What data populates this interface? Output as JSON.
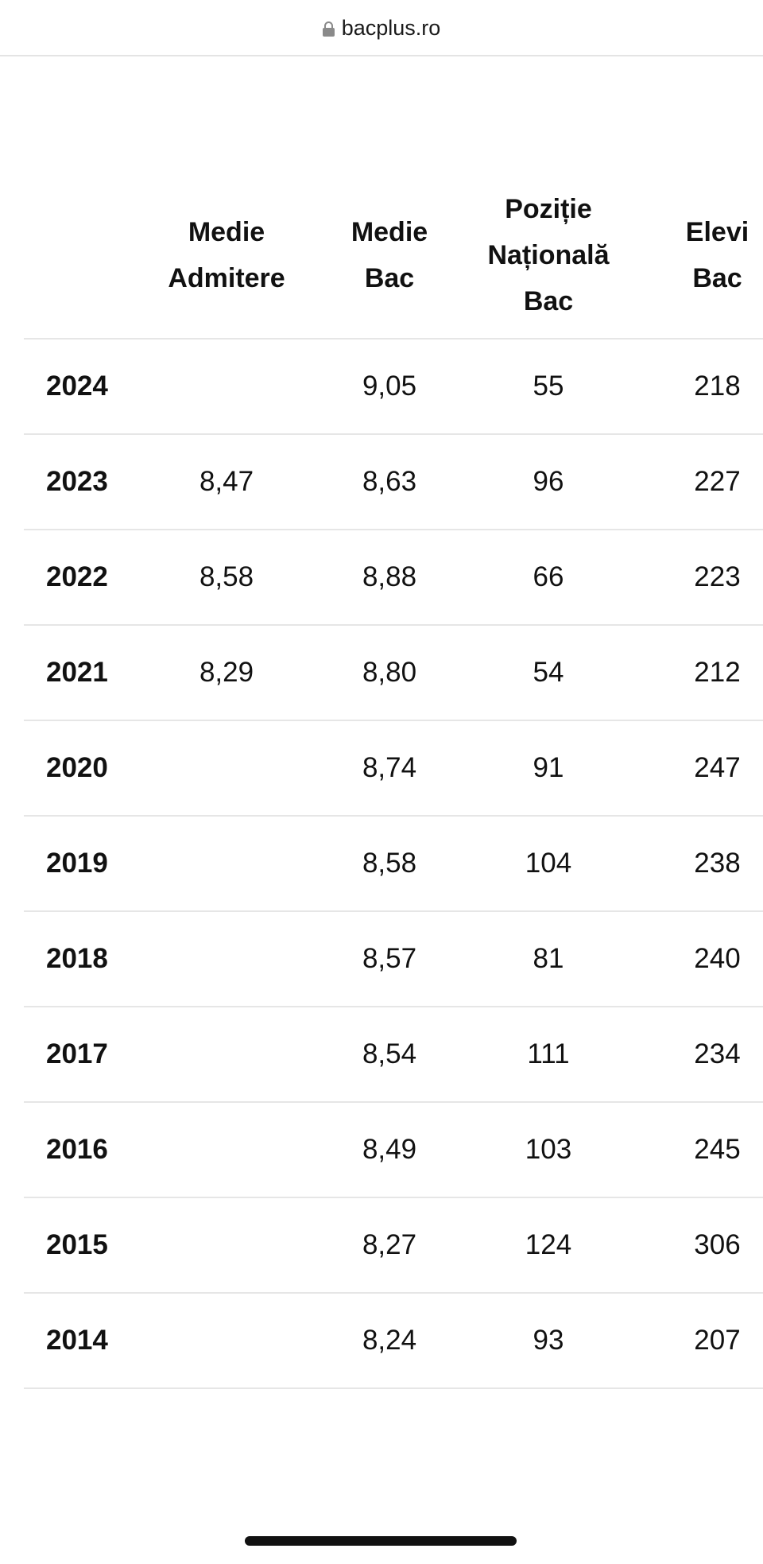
{
  "browser": {
    "url": "bacplus.ro",
    "lock_icon": "lock-icon"
  },
  "table": {
    "headers": {
      "medie_admitere": "Medie Admitere",
      "medie_bac": "Medie Bac",
      "pozitie_nationala_bac": "Poziție Națională Bac",
      "elevi_bac": "Elevi Bac"
    },
    "rows": [
      {
        "year": "2024",
        "medie_admitere": "",
        "medie_bac": "9,05",
        "pozitie": "55",
        "elevi": "218"
      },
      {
        "year": "2023",
        "medie_admitere": "8,47",
        "medie_bac": "8,63",
        "pozitie": "96",
        "elevi": "227"
      },
      {
        "year": "2022",
        "medie_admitere": "8,58",
        "medie_bac": "8,88",
        "pozitie": "66",
        "elevi": "223"
      },
      {
        "year": "2021",
        "medie_admitere": "8,29",
        "medie_bac": "8,80",
        "pozitie": "54",
        "elevi": "212"
      },
      {
        "year": "2020",
        "medie_admitere": "",
        "medie_bac": "8,74",
        "pozitie": "91",
        "elevi": "247"
      },
      {
        "year": "2019",
        "medie_admitere": "",
        "medie_bac": "8,58",
        "pozitie": "104",
        "elevi": "238"
      },
      {
        "year": "2018",
        "medie_admitere": "",
        "medie_bac": "8,57",
        "pozitie": "81",
        "elevi": "240"
      },
      {
        "year": "2017",
        "medie_admitere": "",
        "medie_bac": "8,54",
        "pozitie": "111",
        "elevi": "234"
      },
      {
        "year": "2016",
        "medie_admitere": "",
        "medie_bac": "8,49",
        "pozitie": "103",
        "elevi": "245"
      },
      {
        "year": "2015",
        "medie_admitere": "",
        "medie_bac": "8,27",
        "pozitie": "124",
        "elevi": "306"
      },
      {
        "year": "2014",
        "medie_admitere": "",
        "medie_bac": "8,24",
        "pozitie": "93",
        "elevi": "207"
      }
    ]
  }
}
